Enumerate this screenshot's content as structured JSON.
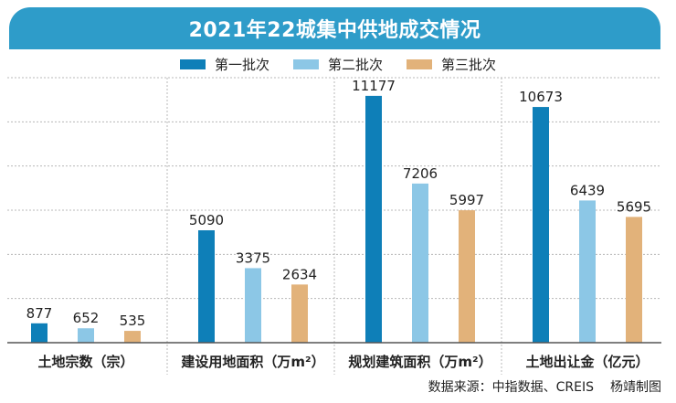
{
  "title": "2021年22城集中供地成交情况",
  "colors": {
    "title_bg": "#2e9cc9",
    "series": [
      "#0e7fb8",
      "#8cc7e6",
      "#e2b27a"
    ],
    "grid": "#b8b8b8",
    "axis": "#555555"
  },
  "chart_data": {
    "type": "bar",
    "title": "2021年22城集中供地成交情况",
    "grid": true,
    "legend_position": "top",
    "ylim": [
      0,
      12000
    ],
    "categories": [
      "土地宗数（宗）",
      "建设用地面积（万m²）",
      "规划建筑面积（万m²）",
      "土地出让金（亿元）"
    ],
    "series": [
      {
        "name": "第一批次",
        "values": [
          877,
          5090,
          11177,
          10673
        ]
      },
      {
        "name": "第二批次",
        "values": [
          652,
          3375,
          7206,
          6439
        ]
      },
      {
        "name": "第三批次",
        "values": [
          535,
          2634,
          5997,
          5695
        ]
      }
    ]
  },
  "footer": {
    "source": "数据来源：中指数据、CREIS",
    "author": "杨靖制图"
  }
}
